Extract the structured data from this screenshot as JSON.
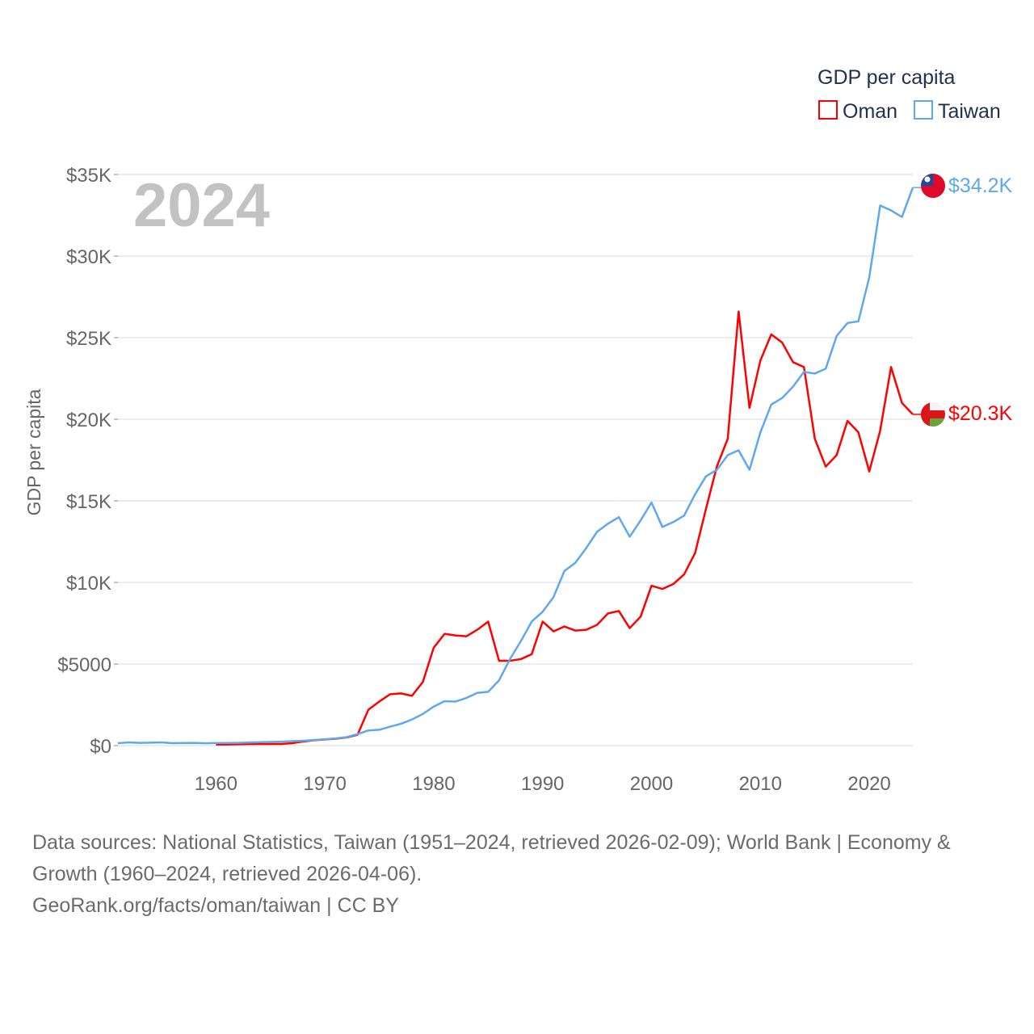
{
  "chart_data": {
    "type": "line",
    "title": "GDP per capita",
    "ylabel": "GDP per capita",
    "xlabel": "",
    "year_label": "2024",
    "xlim": [
      1951,
      2024
    ],
    "ylim": [
      0,
      35000
    ],
    "x_ticks": [
      1960,
      1970,
      1980,
      1990,
      2000,
      2010,
      2020
    ],
    "y_ticks": [
      {
        "v": 0,
        "label": "$0"
      },
      {
        "v": 5000,
        "label": "$5000"
      },
      {
        "v": 10000,
        "label": "$10K"
      },
      {
        "v": 15000,
        "label": "$15K"
      },
      {
        "v": 20000,
        "label": "$20K"
      },
      {
        "v": 25000,
        "label": "$25K"
      },
      {
        "v": 30000,
        "label": "$30K"
      },
      {
        "v": 35000,
        "label": "$35K"
      }
    ],
    "grid": true,
    "legend_placement": "top-right",
    "series": [
      {
        "name": "Oman",
        "color": "#ff0000",
        "end_label": "$20.3K",
        "flag": "oman-flag",
        "start": 1960,
        "values": [
          70,
          70,
          80,
          90,
          100,
          100,
          100,
          150,
          250,
          330,
          380,
          420,
          500,
          660,
          2200,
          2700,
          3150,
          3200,
          3050,
          3900,
          6000,
          6850,
          6750,
          6700,
          7100,
          7600,
          5200,
          5200,
          5300,
          5600,
          7600,
          7000,
          7300,
          7050,
          7100,
          7400,
          8100,
          8250,
          7200,
          7900,
          9800,
          9600,
          9900,
          10500,
          11800,
          14500,
          17100,
          18800,
          26600,
          20700,
          23600,
          25200,
          24700,
          23500,
          23200,
          18800,
          17100,
          17800,
          19900,
          19200,
          16800,
          19300,
          23200,
          21000,
          20300
        ]
      },
      {
        "name": "Taiwan",
        "color": "#5ea8ee",
        "end_label": "$34.2K",
        "flag": "taiwan-flag",
        "start": 1951,
        "values": [
          150,
          200,
          170,
          180,
          200,
          150,
          160,
          170,
          140,
          160,
          160,
          170,
          190,
          210,
          220,
          240,
          270,
          300,
          340,
          390,
          440,
          520,
          700,
          930,
          970,
          1160,
          1340,
          1600,
          1940,
          2390,
          2720,
          2700,
          2920,
          3230,
          3300,
          4000,
          5300,
          6400,
          7600,
          8200,
          9100,
          10700,
          11200,
          12100,
          13100,
          13600,
          14000,
          12800,
          13800,
          14900,
          13400,
          13700,
          14100,
          15400,
          16500,
          16900,
          17800,
          18100,
          16900,
          19200,
          20900,
          21300,
          22000,
          22900,
          22800,
          23100,
          25100,
          25900,
          26000,
          28700,
          33100,
          32800,
          32400,
          34200
        ]
      }
    ]
  },
  "sources": {
    "line1": "Data sources: National Statistics, Taiwan (1951–2024, retrieved 2026-02-09); World Bank | Economy &",
    "line2": "Growth (1960–2024, retrieved 2026-04-06).",
    "line3": "GeoRank.org/facts/oman/taiwan | CC BY"
  }
}
